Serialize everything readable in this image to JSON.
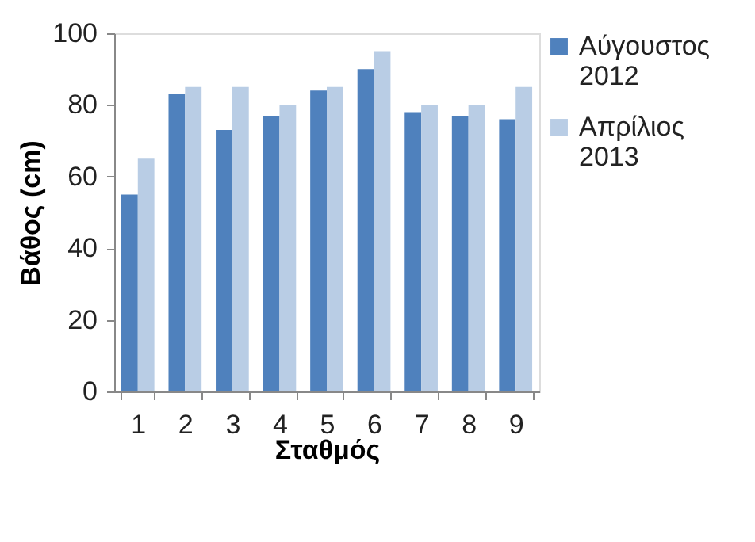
{
  "chart_data": {
    "type": "bar",
    "xlabel": "Σταθμός",
    "ylabel": "Βάθος (cm)",
    "categories": [
      "1",
      "2",
      "3",
      "4",
      "5",
      "6",
      "7",
      "8",
      "9"
    ],
    "series": [
      {
        "name": "Αύγουστος 2012",
        "color": "#4f81bd",
        "values": [
          55,
          83,
          73,
          77,
          84,
          90,
          78,
          77,
          76
        ]
      },
      {
        "name": "Απρίλιος 2013",
        "color": "#b9cde5",
        "values": [
          65,
          85,
          85,
          80,
          85,
          95,
          80,
          80,
          85
        ]
      }
    ],
    "ylim": [
      0,
      100
    ],
    "yticks": [
      0,
      20,
      40,
      60,
      80,
      100
    ],
    "grid": false,
    "legend": "right"
  }
}
